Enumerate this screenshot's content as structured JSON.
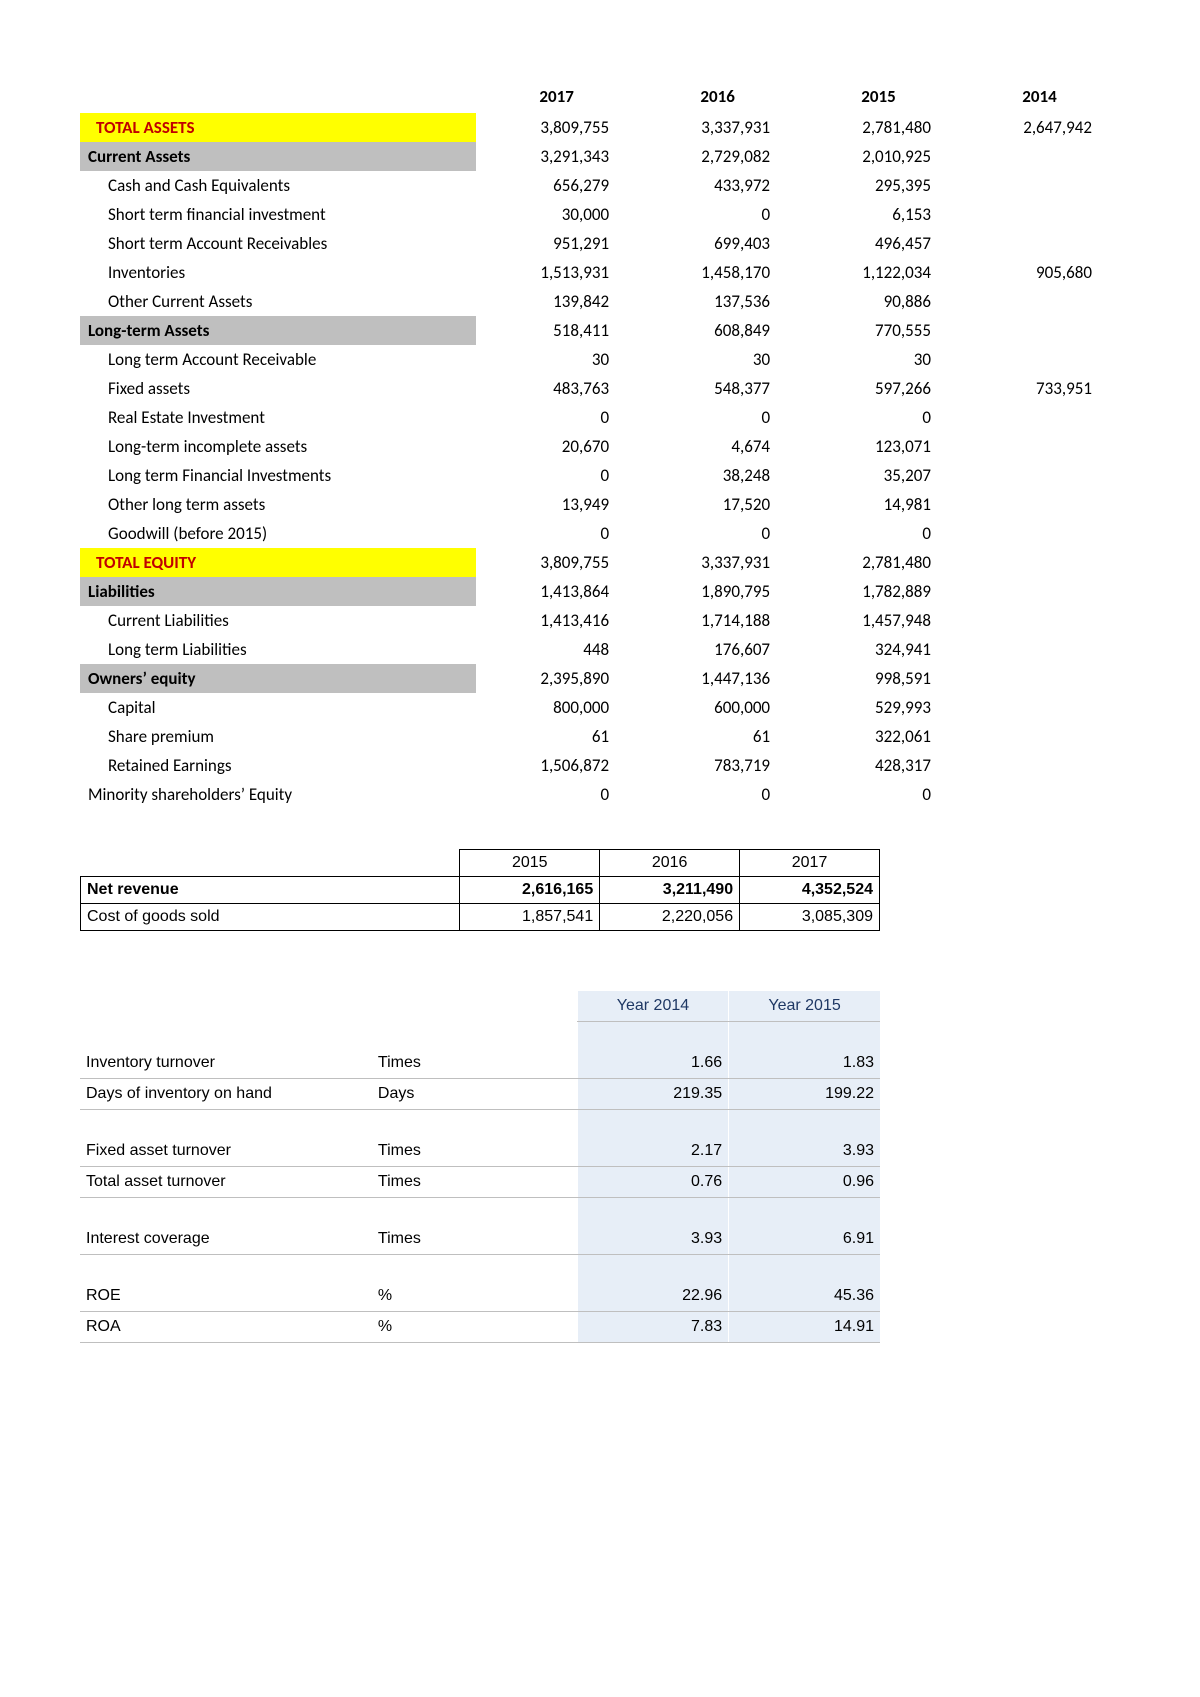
{
  "balance_sheet": {
    "year_headers": [
      "2017",
      "2016",
      "2015",
      "2014"
    ],
    "rows": [
      {
        "label": "TOTAL ASSETS",
        "style": "yel",
        "vals": [
          "3,809,755",
          "3,337,931",
          "2,781,480",
          "2,647,942"
        ]
      },
      {
        "label": "Current Assets",
        "style": "gry",
        "vals": [
          "3,291,343",
          "2,729,082",
          "2,010,925",
          ""
        ]
      },
      {
        "label": "Cash and Cash Equivalents",
        "style": "ind1",
        "vals": [
          "656,279",
          "433,972",
          "295,395",
          ""
        ]
      },
      {
        "label": "Short term financial investment",
        "style": "ind1",
        "vals": [
          "30,000",
          "0",
          "6,153",
          ""
        ]
      },
      {
        "label": "Short term Account Receivables",
        "style": "ind1",
        "vals": [
          "951,291",
          "699,403",
          "496,457",
          ""
        ]
      },
      {
        "label": "Inventories",
        "style": "ind1",
        "vals": [
          "1,513,931",
          "1,458,170",
          "1,122,034",
          "905,680"
        ]
      },
      {
        "label": "Other Current Assets",
        "style": "ind1",
        "vals": [
          "139,842",
          "137,536",
          "90,886",
          ""
        ]
      },
      {
        "label": "Long-term Assets",
        "style": "gry",
        "vals": [
          "518,411",
          "608,849",
          "770,555",
          ""
        ]
      },
      {
        "label": "Long term Account Receivable",
        "style": "ind1",
        "vals": [
          "30",
          "30",
          "30",
          ""
        ]
      },
      {
        "label": "Fixed assets",
        "style": "ind1",
        "vals": [
          "483,763",
          "548,377",
          "597,266",
          "733,951"
        ]
      },
      {
        "label": "Real Estate Investment",
        "style": "ind1",
        "vals": [
          "0",
          "0",
          "0",
          ""
        ]
      },
      {
        "label": "Long-term incomplete assets",
        "style": "ind1",
        "vals": [
          "20,670",
          "4,674",
          "123,071",
          ""
        ]
      },
      {
        "label": "Long term Financial Investments",
        "style": "ind1",
        "vals": [
          "0",
          "38,248",
          "35,207",
          ""
        ]
      },
      {
        "label": "Other long term assets",
        "style": "ind1",
        "vals": [
          "13,949",
          "17,520",
          "14,981",
          ""
        ]
      },
      {
        "label": "Goodwill (before 2015)",
        "style": "ind1",
        "vals": [
          "0",
          "0",
          "0",
          ""
        ]
      },
      {
        "label": "TOTAL EQUITY",
        "style": "yel",
        "vals": [
          "3,809,755",
          "3,337,931",
          "2,781,480",
          ""
        ]
      },
      {
        "label": "Liabilities",
        "style": "gry",
        "vals": [
          "1,413,864",
          "1,890,795",
          "1,782,889",
          ""
        ]
      },
      {
        "label": "Current Liabilities",
        "style": "ind1",
        "vals": [
          "1,413,416",
          "1,714,188",
          "1,457,948",
          ""
        ]
      },
      {
        "label": "Long term Liabilities",
        "style": "ind1",
        "vals": [
          "448",
          "176,607",
          "324,941",
          ""
        ]
      },
      {
        "label": "Owners’ equity",
        "style": "gry",
        "vals": [
          "2,395,890",
          "1,447,136",
          "998,591",
          ""
        ]
      },
      {
        "label": "Capital",
        "style": "ind1",
        "vals": [
          "800,000",
          "600,000",
          "529,993",
          ""
        ]
      },
      {
        "label": "Share premium",
        "style": "ind1",
        "vals": [
          "61",
          "61",
          "322,061",
          ""
        ]
      },
      {
        "label": "Retained Earnings",
        "style": "ind1",
        "vals": [
          "1,506,872",
          "783,719",
          "428,317",
          ""
        ]
      },
      {
        "label": "Minority shareholders’ Equity",
        "style": "noind",
        "vals": [
          "0",
          "0",
          "0",
          ""
        ]
      }
    ]
  },
  "income": {
    "year_headers": [
      "2015",
      "2016",
      "2017"
    ],
    "rows": [
      {
        "label": "Net revenue",
        "bold": true,
        "vals": [
          "2,616,165",
          "3,211,490",
          "4,352,524"
        ]
      },
      {
        "label": "Cost of goods sold",
        "bold": false,
        "vals": [
          "1,857,541",
          "2,220,056",
          "3,085,309"
        ]
      }
    ]
  },
  "ratios": {
    "year_headers": [
      "Year 2014",
      "Year 2015"
    ],
    "groups": [
      [
        {
          "label": "Inventory turnover",
          "unit": "Times",
          "vals": [
            "1.66",
            "1.83"
          ]
        },
        {
          "label": "Days of inventory on hand",
          "unit": "Days",
          "vals": [
            "219.35",
            "199.22"
          ]
        }
      ],
      [
        {
          "label": "Fixed asset turnover",
          "unit": "Times",
          "vals": [
            "2.17",
            "3.93"
          ]
        },
        {
          "label": "Total asset turnover",
          "unit": "Times",
          "vals": [
            "0.76",
            "0.96"
          ]
        }
      ],
      [
        {
          "label": "Interest coverage",
          "unit": "Times",
          "vals": [
            "3.93",
            "6.91"
          ]
        }
      ],
      [
        {
          "label": "ROE",
          "unit": "%",
          "vals": [
            "22.96",
            "45.36"
          ]
        },
        {
          "label": "ROA",
          "unit": "%",
          "vals": [
            "7.83",
            "14.91"
          ]
        }
      ]
    ]
  }
}
